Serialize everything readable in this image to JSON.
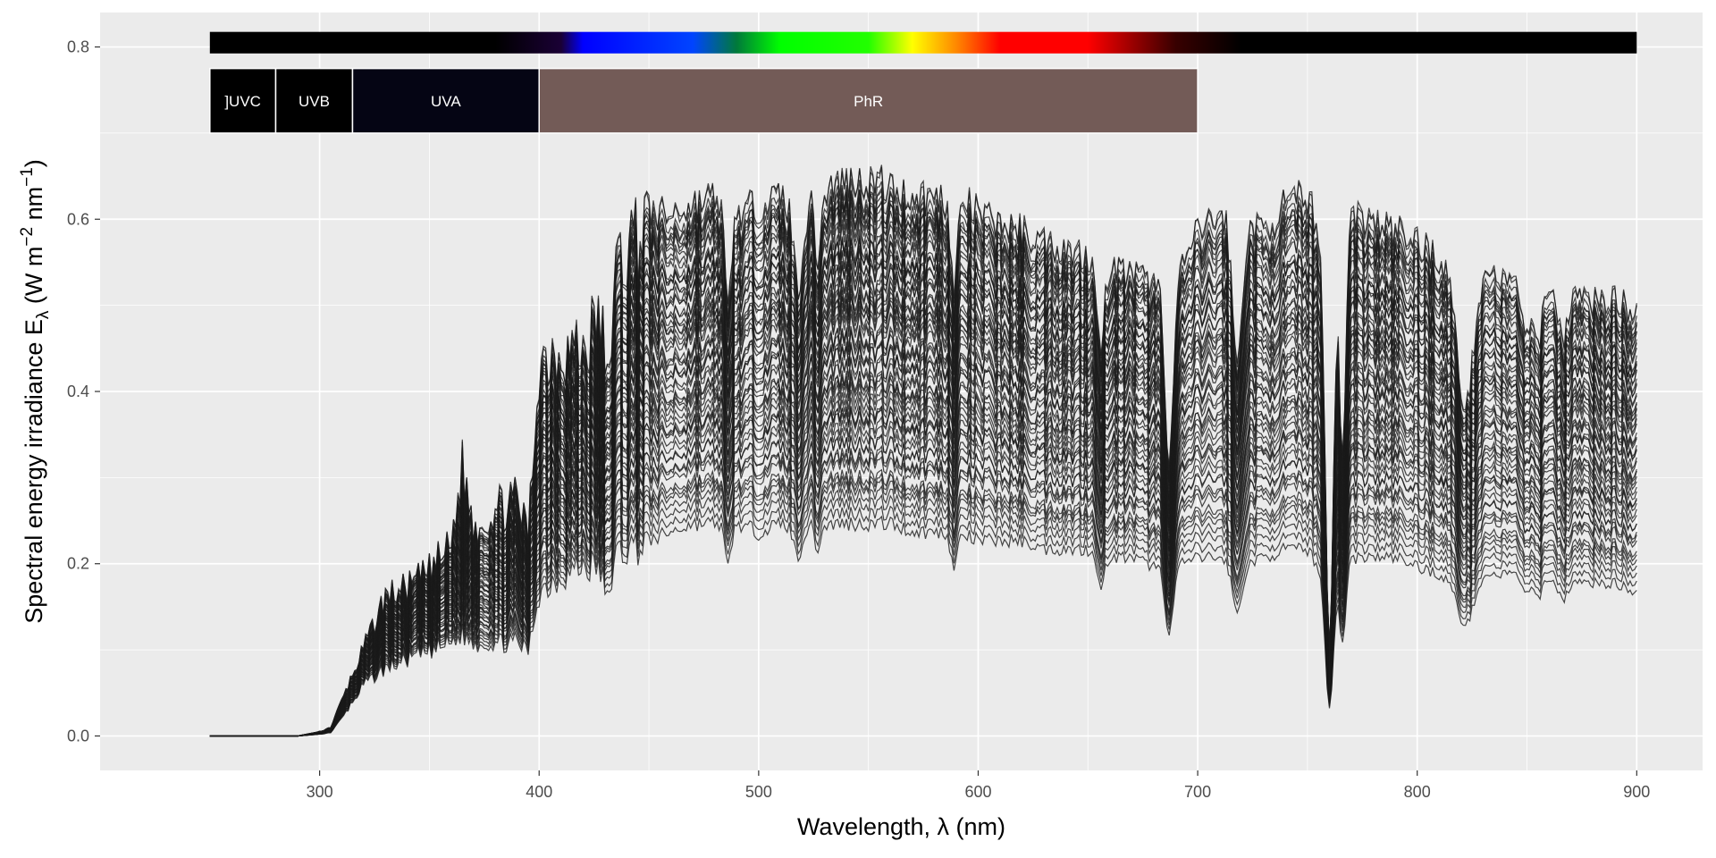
{
  "chart_data": {
    "type": "line",
    "title": "",
    "xlabel": "Wavelength, λ (nm)",
    "ylabel": "Spectral energy irradiance E_λ (W m^-2 nm^-1)",
    "ylabel_parts": {
      "prefix": "Spectral  energy  irradiance  E",
      "sub": "λ",
      "open": "  (W m",
      "exp1": "−2",
      "mid": " nm",
      "exp2": "−1",
      "close": ")"
    },
    "xlim": [
      200,
      930
    ],
    "ylim": [
      -0.04,
      0.84
    ],
    "x_ticks": [
      300,
      400,
      500,
      600,
      700,
      800,
      900
    ],
    "x_tick_labels": [
      "300",
      "400",
      "500",
      "600",
      "700",
      "800",
      "900"
    ],
    "y_ticks": [
      0.0,
      0.2,
      0.4,
      0.6,
      0.8
    ],
    "y_tick_labels": [
      "0.0",
      "0.2",
      "0.4",
      "0.6",
      "0.8"
    ],
    "grid": true,
    "background": "#EBEBEB",
    "gridline_color": "#FFFFFF",
    "line_color": "#1A1A1A",
    "n_series": 60,
    "series_scale_range": [
      0.4,
      1.0
    ],
    "envelope": {
      "x": [
        250,
        290,
        300,
        305,
        310,
        320,
        330,
        340,
        350,
        360,
        365,
        370,
        380,
        390,
        395,
        400,
        410,
        420,
        430,
        440,
        450,
        460,
        470,
        480,
        490,
        500,
        510,
        520,
        530,
        540,
        550,
        560,
        570,
        580,
        590,
        600,
        610,
        620,
        630,
        640,
        650,
        660,
        670,
        680,
        690,
        700,
        710,
        720,
        730,
        740,
        750,
        760,
        770,
        780,
        790,
        800,
        810,
        820,
        830,
        840,
        850,
        860,
        870,
        880,
        890,
        900
      ],
      "max": [
        0.0,
        0.0,
        0.005,
        0.01,
        0.04,
        0.1,
        0.16,
        0.17,
        0.19,
        0.22,
        0.31,
        0.24,
        0.26,
        0.27,
        0.23,
        0.43,
        0.45,
        0.44,
        0.5,
        0.56,
        0.6,
        0.6,
        0.61,
        0.62,
        0.6,
        0.61,
        0.62,
        0.61,
        0.63,
        0.64,
        0.64,
        0.63,
        0.62,
        0.62,
        0.62,
        0.6,
        0.59,
        0.58,
        0.57,
        0.56,
        0.55,
        0.54,
        0.53,
        0.52,
        0.52,
        0.58,
        0.6,
        0.59,
        0.58,
        0.61,
        0.62,
        0.55,
        0.6,
        0.59,
        0.58,
        0.57,
        0.55,
        0.52,
        0.54,
        0.52,
        0.52,
        0.53,
        0.51,
        0.5,
        0.5,
        0.49
      ],
      "min": [
        0.0,
        0.0,
        0.002,
        0.004,
        0.02,
        0.06,
        0.08,
        0.09,
        0.1,
        0.11,
        0.12,
        0.11,
        0.11,
        0.11,
        0.1,
        0.17,
        0.19,
        0.2,
        0.2,
        0.22,
        0.23,
        0.24,
        0.25,
        0.25,
        0.25,
        0.24,
        0.25,
        0.25,
        0.25,
        0.25,
        0.25,
        0.25,
        0.24,
        0.24,
        0.24,
        0.23,
        0.23,
        0.23,
        0.22,
        0.22,
        0.22,
        0.21,
        0.21,
        0.2,
        0.2,
        0.21,
        0.21,
        0.2,
        0.21,
        0.22,
        0.22,
        0.18,
        0.21,
        0.21,
        0.21,
        0.2,
        0.19,
        0.18,
        0.19,
        0.19,
        0.19,
        0.19,
        0.18,
        0.18,
        0.18,
        0.17
      ]
    },
    "dips": [
      {
        "x": 431,
        "depth": 0.22,
        "width": 2
      },
      {
        "x": 486,
        "depth": 0.2,
        "width": 2
      },
      {
        "x": 518,
        "depth": 0.15,
        "width": 3
      },
      {
        "x": 527,
        "depth": 0.12,
        "width": 2
      },
      {
        "x": 589,
        "depth": 0.18,
        "width": 2
      },
      {
        "x": 656,
        "depth": 0.2,
        "width": 2
      },
      {
        "x": 687,
        "depth": 0.4,
        "width": 2.5
      },
      {
        "x": 718,
        "depth": 0.28,
        "width": 3
      },
      {
        "x": 760,
        "depth": 0.82,
        "width": 2.5
      },
      {
        "x": 766,
        "depth": 0.45,
        "width": 2
      },
      {
        "x": 822,
        "depth": 0.28,
        "width": 5
      },
      {
        "x": 850,
        "depth": 0.1,
        "width": 3
      },
      {
        "x": 855,
        "depth": 0.14,
        "width": 3
      },
      {
        "x": 866,
        "depth": 0.12,
        "width": 3
      }
    ],
    "color_bar": {
      "y_center": 0.805,
      "height": 0.025,
      "stops": [
        {
          "wl": 250,
          "color": "#000000"
        },
        {
          "wl": 380,
          "color": "#000000"
        },
        {
          "wl": 410,
          "color": "#1a0035"
        },
        {
          "wl": 420,
          "color": "#0000ff"
        },
        {
          "wl": 470,
          "color": "#0044ff"
        },
        {
          "wl": 490,
          "color": "#007a3a"
        },
        {
          "wl": 510,
          "color": "#00ff00"
        },
        {
          "wl": 550,
          "color": "#22ff00"
        },
        {
          "wl": 570,
          "color": "#ffff00"
        },
        {
          "wl": 590,
          "color": "#ff8800"
        },
        {
          "wl": 610,
          "color": "#ff0000"
        },
        {
          "wl": 650,
          "color": "#ff0000"
        },
        {
          "wl": 690,
          "color": "#380000"
        },
        {
          "wl": 720,
          "color": "#000000"
        },
        {
          "wl": 900,
          "color": "#000000"
        }
      ]
    },
    "bands": [
      {
        "label": "]UVC",
        "xmin": 250,
        "xmax": 280,
        "color": "#000000"
      },
      {
        "label": "UVB",
        "xmin": 280,
        "xmax": 315,
        "color": "#000000"
      },
      {
        "label": "UVA",
        "xmin": 315,
        "xmax": 400,
        "color": "#050514"
      },
      {
        "label": "PhR",
        "xmin": 400,
        "xmax": 700,
        "color": "#735B57"
      }
    ],
    "band_y": [
      0.7,
      0.775
    ]
  }
}
